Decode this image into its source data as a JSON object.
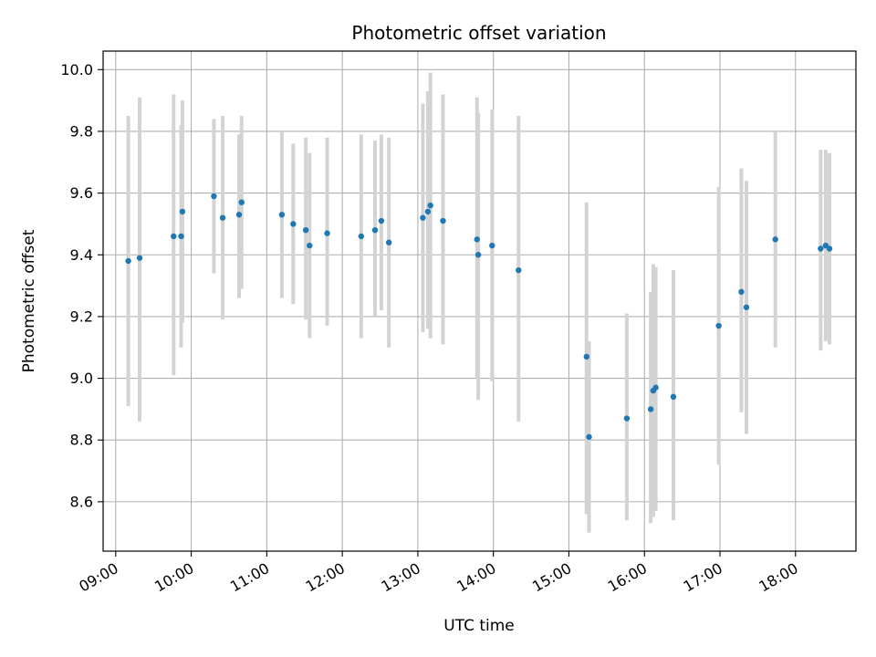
{
  "chart_data": {
    "type": "scatter",
    "title": "Photometric offset variation",
    "xlabel": "UTC time",
    "ylabel": "Photometric offset",
    "x_unit": "UTC time (HH:MM)",
    "xlim": [
      "08:50",
      "18:48"
    ],
    "ylim": [
      8.44,
      10.06
    ],
    "x_ticks": [
      "09:00",
      "10:00",
      "11:00",
      "12:00",
      "13:00",
      "14:00",
      "15:00",
      "16:00",
      "17:00",
      "18:00"
    ],
    "y_ticks": [
      8.6,
      8.8,
      9.0,
      9.2,
      9.4,
      9.6,
      9.8,
      10.0
    ],
    "y_tick_labels": [
      "8.6",
      "8.8",
      "9.0",
      "9.2",
      "9.4",
      "9.6",
      "9.8",
      "10.0"
    ],
    "grid": true,
    "colors": {
      "points": "#1f77b4",
      "error_bars": "#d3d3d3",
      "grid": "#b0b0b0"
    },
    "series": [
      {
        "points": [
          {
            "x": "09:10",
            "y": 9.38,
            "ylo": 8.91,
            "yhi": 9.85
          },
          {
            "x": "09:19",
            "y": 9.39,
            "ylo": 8.86,
            "yhi": 9.91
          },
          {
            "x": "09:46",
            "y": 9.46,
            "ylo": 9.01,
            "yhi": 9.92
          },
          {
            "x": "09:52",
            "y": 9.46,
            "ylo": 9.1,
            "yhi": 9.82
          },
          {
            "x": "09:53",
            "y": 9.54,
            "ylo": 9.18,
            "yhi": 9.9
          },
          {
            "x": "10:18",
            "y": 9.59,
            "ylo": 9.34,
            "yhi": 9.84
          },
          {
            "x": "10:25",
            "y": 9.52,
            "ylo": 9.19,
            "yhi": 9.85
          },
          {
            "x": "10:38",
            "y": 9.53,
            "ylo": 9.26,
            "yhi": 9.79
          },
          {
            "x": "10:40",
            "y": 9.57,
            "ylo": 9.29,
            "yhi": 9.85
          },
          {
            "x": "11:12",
            "y": 9.53,
            "ylo": 9.26,
            "yhi": 9.8
          },
          {
            "x": "11:21",
            "y": 9.5,
            "ylo": 9.24,
            "yhi": 9.76
          },
          {
            "x": "11:31",
            "y": 9.48,
            "ylo": 9.19,
            "yhi": 9.78
          },
          {
            "x": "11:34",
            "y": 9.43,
            "ylo": 9.13,
            "yhi": 9.73
          },
          {
            "x": "11:48",
            "y": 9.47,
            "ylo": 9.17,
            "yhi": 9.78
          },
          {
            "x": "12:15",
            "y": 9.46,
            "ylo": 9.13,
            "yhi": 9.79
          },
          {
            "x": "12:26",
            "y": 9.48,
            "ylo": 9.2,
            "yhi": 9.77
          },
          {
            "x": "12:31",
            "y": 9.51,
            "ylo": 9.22,
            "yhi": 9.79
          },
          {
            "x": "12:37",
            "y": 9.44,
            "ylo": 9.1,
            "yhi": 9.78
          },
          {
            "x": "13:04",
            "y": 9.52,
            "ylo": 9.15,
            "yhi": 9.89
          },
          {
            "x": "13:08",
            "y": 9.54,
            "ylo": 9.16,
            "yhi": 9.93
          },
          {
            "x": "13:10",
            "y": 9.56,
            "ylo": 9.13,
            "yhi": 9.99
          },
          {
            "x": "13:20",
            "y": 9.51,
            "ylo": 9.11,
            "yhi": 9.92
          },
          {
            "x": "13:47",
            "y": 9.45,
            "ylo": 9.0,
            "yhi": 9.91
          },
          {
            "x": "13:48",
            "y": 9.4,
            "ylo": 8.93,
            "yhi": 9.86
          },
          {
            "x": "13:59",
            "y": 9.43,
            "ylo": 8.99,
            "yhi": 9.87
          },
          {
            "x": "14:20",
            "y": 9.35,
            "ylo": 8.86,
            "yhi": 9.85
          },
          {
            "x": "15:14",
            "y": 9.07,
            "ylo": 8.56,
            "yhi": 9.57
          },
          {
            "x": "15:16",
            "y": 8.81,
            "ylo": 8.5,
            "yhi": 9.12
          },
          {
            "x": "15:46",
            "y": 8.87,
            "ylo": 8.54,
            "yhi": 9.21
          },
          {
            "x": "16:05",
            "y": 8.9,
            "ylo": 8.53,
            "yhi": 9.28
          },
          {
            "x": "16:07",
            "y": 8.96,
            "ylo": 8.55,
            "yhi": 9.37
          },
          {
            "x": "16:09",
            "y": 8.97,
            "ylo": 8.57,
            "yhi": 9.36
          },
          {
            "x": "16:23",
            "y": 8.94,
            "ylo": 8.54,
            "yhi": 9.35
          },
          {
            "x": "16:59",
            "y": 9.17,
            "ylo": 8.72,
            "yhi": 9.62
          },
          {
            "x": "17:17",
            "y": 9.28,
            "ylo": 8.89,
            "yhi": 9.68
          },
          {
            "x": "17:21",
            "y": 9.23,
            "ylo": 8.82,
            "yhi": 9.64
          },
          {
            "x": "17:44",
            "y": 9.45,
            "ylo": 9.1,
            "yhi": 9.8
          },
          {
            "x": "18:20",
            "y": 9.42,
            "ylo": 9.09,
            "yhi": 9.74
          },
          {
            "x": "18:24",
            "y": 9.43,
            "ylo": 9.12,
            "yhi": 9.74
          },
          {
            "x": "18:27",
            "y": 9.42,
            "ylo": 9.11,
            "yhi": 9.73
          }
        ]
      }
    ]
  }
}
